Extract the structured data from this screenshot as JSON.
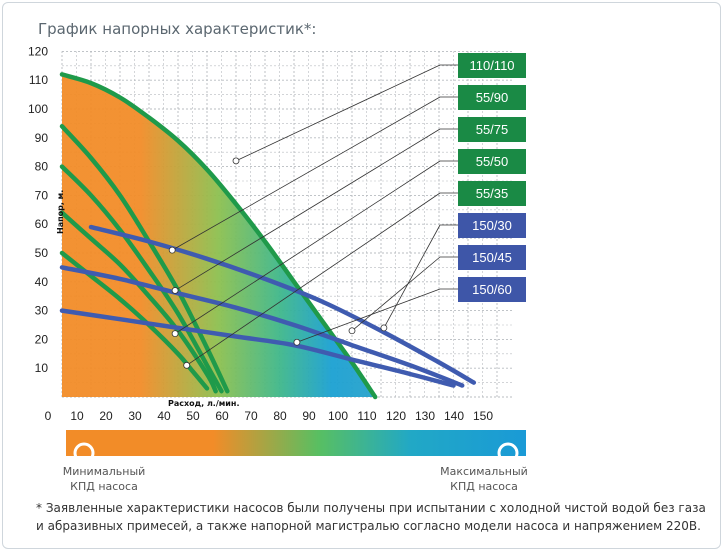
{
  "chart_data": {
    "type": "line",
    "title": "График напорных характеристик*:",
    "xlabel": "Расход, л./мин.",
    "ylabel": "Напор, м.",
    "xlim": [
      0,
      150
    ],
    "ylim": [
      0,
      120
    ],
    "xticks": [
      "0",
      "10",
      "20",
      "30",
      "40",
      "50",
      "60",
      "70",
      "80",
      "90",
      "100",
      "110",
      "120",
      "130",
      "140",
      "150"
    ],
    "yticks": [
      "10",
      "20",
      "30",
      "40",
      "50",
      "60",
      "70",
      "80",
      "90",
      "100",
      "110",
      "120"
    ],
    "grid": true,
    "series": [
      {
        "name": "110/110",
        "group": "green",
        "points": [
          [
            0,
            112
          ],
          [
            10,
            109
          ],
          [
            20,
            104
          ],
          [
            30,
            97
          ],
          [
            40,
            89
          ],
          [
            50,
            79
          ],
          [
            60,
            67
          ],
          [
            70,
            54
          ],
          [
            80,
            40
          ],
          [
            90,
            26
          ],
          [
            100,
            12
          ],
          [
            108,
            0
          ]
        ],
        "label_point": [
          60,
          82
        ]
      },
      {
        "name": "55/90",
        "group": "green",
        "points": [
          [
            0,
            94
          ],
          [
            10,
            83
          ],
          [
            20,
            70
          ],
          [
            30,
            54
          ],
          [
            40,
            37
          ],
          [
            50,
            17
          ],
          [
            57,
            2
          ]
        ],
        "label_point": [
          38,
          51
        ]
      },
      {
        "name": "55/75",
        "group": "green",
        "points": [
          [
            0,
            80
          ],
          [
            10,
            70
          ],
          [
            20,
            58
          ],
          [
            30,
            44
          ],
          [
            40,
            29
          ],
          [
            50,
            11
          ],
          [
            55,
            2
          ]
        ],
        "label_point": [
          39,
          37
        ]
      },
      {
        "name": "55/50",
        "group": "green",
        "points": [
          [
            0,
            64
          ],
          [
            10,
            55
          ],
          [
            20,
            46
          ],
          [
            30,
            35
          ],
          [
            40,
            23
          ],
          [
            50,
            8
          ],
          [
            53,
            2
          ]
        ],
        "label_point": [
          39,
          22
        ]
      },
      {
        "name": "55/35",
        "group": "green",
        "points": [
          [
            0,
            50
          ],
          [
            10,
            42
          ],
          [
            20,
            34
          ],
          [
            30,
            25
          ],
          [
            40,
            15
          ],
          [
            45,
            9
          ],
          [
            50,
            3
          ]
        ],
        "label_point": [
          43,
          11
        ]
      },
      {
        "name": "150/30",
        "group": "blue",
        "points": [
          [
            10,
            59
          ],
          [
            30,
            54
          ],
          [
            50,
            48
          ],
          [
            70,
            41
          ],
          [
            90,
            33
          ],
          [
            110,
            23
          ],
          [
            130,
            12
          ],
          [
            142,
            5
          ]
        ],
        "label_point": [
          111,
          24
        ]
      },
      {
        "name": "150/45",
        "group": "blue",
        "points": [
          [
            0,
            45
          ],
          [
            20,
            41
          ],
          [
            40,
            36
          ],
          [
            60,
            31
          ],
          [
            80,
            25
          ],
          [
            100,
            18
          ],
          [
            120,
            11
          ],
          [
            138,
            4
          ]
        ],
        "label_point": [
          100,
          23
        ]
      },
      {
        "name": "150/60",
        "group": "blue",
        "points": [
          [
            0,
            30
          ],
          [
            20,
            27
          ],
          [
            40,
            24
          ],
          [
            60,
            21
          ],
          [
            80,
            18
          ],
          [
            100,
            13
          ],
          [
            120,
            8
          ],
          [
            135,
            4
          ]
        ],
        "label_point": [
          81,
          19
        ]
      }
    ],
    "colorbar": {
      "left_label": "Минимальный КПД насоса",
      "right_label": "Максимальный КПД насоса"
    },
    "footnote": "* Заявленные характеристики насосов были получены при испытании с холодной чистой водой без газа и абразивных примесей, а также напорной магистралью согласно модели насоса и напряжением 220В.",
    "colors": {
      "green_curve": "#1f9a4a",
      "blue_curve": "#3f5bb0",
      "label_green": "#1a8a45",
      "label_blue": "#3e56a8",
      "efficiency_low": "#f28c28",
      "efficiency_high": "#1a9ad6"
    }
  }
}
